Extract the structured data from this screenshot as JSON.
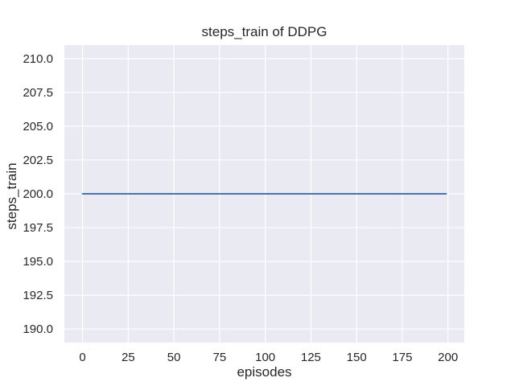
{
  "figure": {
    "title": "steps_train of DDPG",
    "xlabel": "episodes",
    "ylabel": "steps_train"
  },
  "chart_data": {
    "type": "line",
    "title": "steps_train of DDPG",
    "xlabel": "episodes",
    "ylabel": "steps_train",
    "xlim": [
      -9.95,
      208.95
    ],
    "ylim": [
      189.0,
      211.0
    ],
    "x_ticks": {
      "values": [
        0,
        25,
        50,
        75,
        100,
        125,
        150,
        175,
        200
      ],
      "labels": [
        "0",
        "25",
        "50",
        "75",
        "100",
        "125",
        "150",
        "175",
        "200"
      ]
    },
    "y_ticks": {
      "values": [
        190.0,
        192.5,
        195.0,
        197.5,
        200.0,
        202.5,
        205.0,
        207.5,
        210.0
      ],
      "labels": [
        "190.0",
        "192.5",
        "195.0",
        "197.5",
        "200.0",
        "202.5",
        "205.0",
        "207.5",
        "210.0"
      ]
    },
    "grid": true,
    "legend": null,
    "series": [
      {
        "name": "steps_train",
        "color": "#4c72b0",
        "linewidth": 2.1,
        "x": [
          0,
          199
        ],
        "y": [
          200,
          200
        ]
      }
    ],
    "colors": {
      "figure_background": "#ffffff",
      "plot_background": "#eaeaf2",
      "gridline": "#ffffff",
      "text": "#262626"
    }
  }
}
